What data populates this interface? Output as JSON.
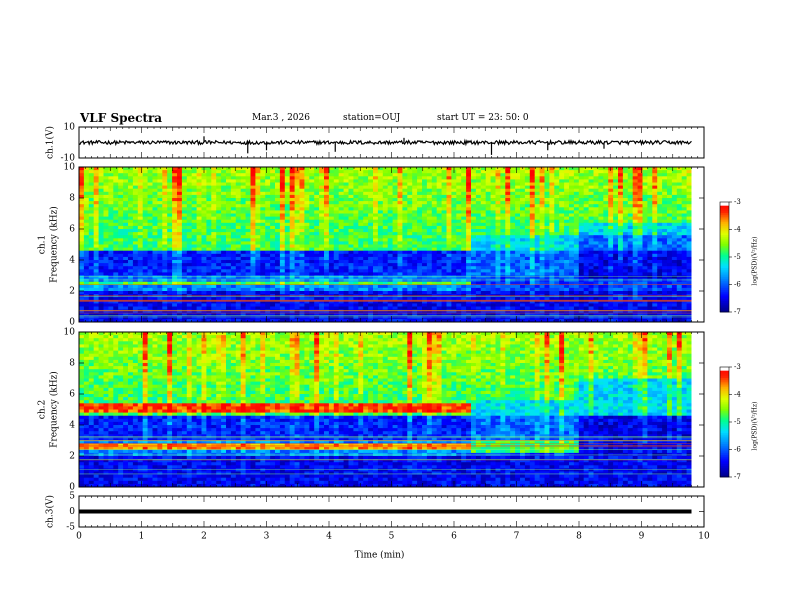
{
  "chart_data": {
    "type": "heatmap",
    "title": "VLF Spectra",
    "header": {
      "date": "Mar.3 , 2026",
      "station": "station=OUJ",
      "start": "start UT = 23: 50: 0"
    },
    "xlabel": "Time (min)",
    "xlim": [
      0,
      10
    ],
    "x_ticks": [
      "0",
      "1",
      "2",
      "3",
      "4",
      "5",
      "6",
      "7",
      "8",
      "9",
      "10"
    ],
    "panels": [
      {
        "name": "ch.1(V)",
        "type": "line",
        "ylabel": "ch.1(V)",
        "ylim": [
          -10,
          10
        ],
        "y_ticks": [
          "10",
          "-10"
        ],
        "baseline": 0,
        "spikes": [
          [
            2.0,
            4
          ],
          [
            2.7,
            -7
          ],
          [
            3.0,
            -5
          ],
          [
            4.1,
            -6
          ],
          [
            5.2,
            3
          ],
          [
            6.6,
            -8
          ],
          [
            7.5,
            -5
          ],
          [
            8.4,
            -4
          ]
        ]
      },
      {
        "name": "ch.1 spectrogram",
        "type": "heatmap",
        "ylabel": "ch.1 Frequency (kHz)",
        "ylim": [
          0,
          10
        ],
        "y_ticks": [
          "0",
          "2",
          "4",
          "6",
          "8",
          "10"
        ],
        "colorbar": {
          "label": "log(PSD)(V²/Hz)",
          "range": [
            -7,
            -3
          ],
          "ticks": [
            "-3",
            "-4",
            "-5",
            "-6",
            "-7"
          ]
        },
        "change_points_min": [
          6.3,
          8.0
        ]
      },
      {
        "name": "ch.2 spectrogram",
        "type": "heatmap",
        "ylabel": "ch.2 Frequency (kHz)",
        "ylim": [
          0,
          10
        ],
        "y_ticks": [
          "0",
          "2",
          "4",
          "6",
          "8",
          "10"
        ],
        "colorbar": {
          "label": "log(PSD)(V²/Hz)",
          "range": [
            -7,
            -3
          ],
          "ticks": [
            "-3",
            "-4",
            "-5",
            "-6",
            "-7"
          ]
        },
        "change_points_min": [
          6.3,
          8.0
        ]
      },
      {
        "name": "ch.3(V)",
        "type": "line",
        "ylabel": "ch.3(V)",
        "ylim": [
          -5,
          5
        ],
        "y_ticks": [
          "5",
          "0",
          "-5"
        ],
        "level": 0
      }
    ],
    "data_end_min": 9.8,
    "palette": [
      "#000080",
      "#0000ff",
      "#0066ff",
      "#00ccff",
      "#00ff99",
      "#66ff00",
      "#ccff00",
      "#ffcc00",
      "#ff6600",
      "#ff0000",
      "#ffffff"
    ]
  }
}
